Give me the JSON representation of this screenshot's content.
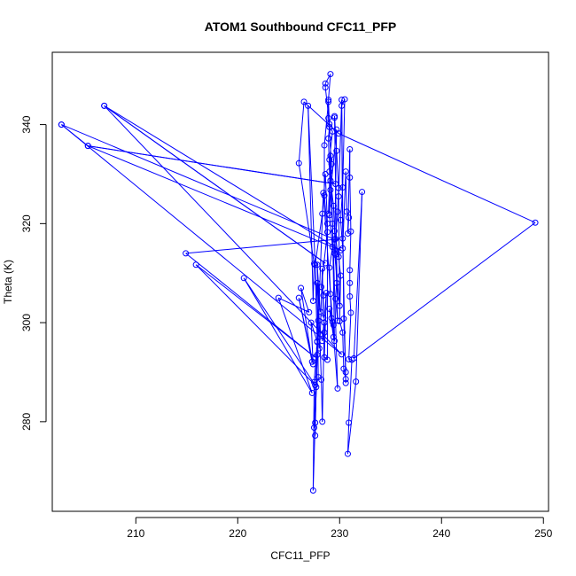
{
  "chart_data": {
    "type": "line",
    "title": "ATOM1 Southbound CFC11_PFP",
    "xlabel": "CFC11_PFP",
    "ylabel": "Theta (K)",
    "xlim": [
      201.8,
      250.5
    ],
    "ylim": [
      261.9,
      354.6
    ],
    "x_ticks": [
      210,
      220,
      230,
      240,
      250
    ],
    "y_ticks": [
      280,
      300,
      320,
      340
    ],
    "grid": false,
    "markers": "open-circle",
    "colors": {
      "series": "#0000ff",
      "axis": "#000000"
    },
    "series": [
      {
        "points": [
          [
            202.7,
            340.0
          ],
          [
            205.3,
            335.7
          ],
          [
            229.6,
            328.0
          ],
          [
            205.3,
            335.7
          ],
          [
            230.1,
            314.6
          ],
          [
            206.9,
            343.8
          ],
          [
            228.6,
            312.0
          ],
          [
            206.9,
            343.8
          ],
          [
            230.2,
            293.6
          ],
          [
            202.7,
            340.0
          ],
          [
            229.5,
            316.8
          ],
          [
            214.9,
            314.0
          ],
          [
            227.6,
            293.0
          ],
          [
            215.9,
            311.7
          ],
          [
            227.6,
            287.4
          ],
          [
            220.6,
            309.0
          ],
          [
            227.3,
            285.8
          ],
          [
            224.0,
            305.0
          ],
          [
            227.0,
            302.1
          ],
          [
            226.2,
            307.0
          ],
          [
            227.3,
            292.1
          ],
          [
            226.0,
            305.0
          ],
          [
            227.4,
            291.6
          ],
          [
            227.2,
            300.0
          ],
          [
            227.8,
            296.2
          ],
          [
            227.5,
            288.0
          ],
          [
            227.4,
            266.1
          ],
          [
            227.8,
            293.5
          ],
          [
            227.6,
            279.8
          ],
          [
            227.6,
            277.2
          ],
          [
            227.7,
            287.0
          ],
          [
            227.9,
            289.0
          ],
          [
            227.8,
            308.0
          ],
          [
            228.1,
            302.2
          ],
          [
            227.8,
            311.7
          ],
          [
            228.2,
            288.5
          ],
          [
            228.3,
            280.0
          ],
          [
            228.5,
            300.0
          ],
          [
            228.5,
            298.0
          ],
          [
            228.3,
            296.3
          ],
          [
            228.7,
            306.0
          ],
          [
            228.5,
            293.0
          ],
          [
            228.8,
            292.5
          ],
          [
            228.8,
            320.0
          ],
          [
            228.6,
            330.0
          ],
          [
            228.3,
            322.0
          ],
          [
            227.6,
            311.7
          ],
          [
            227.9,
            300.4
          ],
          [
            228.0,
            294.8
          ],
          [
            228.1,
            297.7
          ],
          [
            228.3,
            310.9
          ],
          [
            228.4,
            301.0
          ],
          [
            228.4,
            305.5
          ],
          [
            228.2,
            307.2
          ],
          [
            228.8,
            318.3
          ],
          [
            228.5,
            325.7
          ],
          [
            228.5,
            335.8
          ],
          [
            228.9,
            344.6
          ],
          [
            229.0,
            340.1
          ],
          [
            228.6,
            347.5
          ],
          [
            228.6,
            348.3
          ],
          [
            229.1,
            350.2
          ],
          [
            228.9,
            345.0
          ],
          [
            228.9,
            341.3
          ],
          [
            229.2,
            332.0
          ],
          [
            229.1,
            326.8
          ],
          [
            229.0,
            321.7
          ],
          [
            229.3,
            315.3
          ],
          [
            229.0,
            311.1
          ],
          [
            229.1,
            305.8
          ],
          [
            229.2,
            300.9
          ],
          [
            229.4,
            297.1
          ],
          [
            229.0,
            302.8
          ],
          [
            229.4,
            299.5
          ],
          [
            229.5,
            296.3
          ],
          [
            229.3,
            320.0
          ],
          [
            229.0,
            330.5
          ],
          [
            228.9,
            337.2
          ],
          [
            229.0,
            339.5
          ],
          [
            229.3,
            338.6
          ],
          [
            229.0,
            332.9
          ],
          [
            229.1,
            328.7
          ],
          [
            229.4,
            323.6
          ],
          [
            229.5,
            318.5
          ],
          [
            229.6,
            313.7
          ],
          [
            229.7,
            308.0
          ],
          [
            229.6,
            304.8
          ],
          [
            229.8,
            300.4
          ],
          [
            229.5,
            341.4
          ],
          [
            229.5,
            341.7
          ],
          [
            229.7,
            334.7
          ],
          [
            229.9,
            327.2
          ],
          [
            229.8,
            322.4
          ],
          [
            229.6,
            316.9
          ],
          [
            229.9,
            313.3
          ],
          [
            230.1,
            309.5
          ],
          [
            230.0,
            300.3
          ],
          [
            230.3,
            298.0
          ],
          [
            230.4,
            290.7
          ],
          [
            230.6,
            288.6
          ],
          [
            230.6,
            287.8
          ],
          [
            230.3,
            317.0
          ],
          [
            230.2,
            343.8
          ],
          [
            230.5,
            345.1
          ],
          [
            230.3,
            327.3
          ],
          [
            230.1,
            320.7
          ],
          [
            230.3,
            315.0
          ],
          [
            230.6,
            330.5
          ],
          [
            230.7,
            322.4
          ],
          [
            230.9,
            321.2
          ],
          [
            230.8,
            318.0
          ],
          [
            231.0,
            335.0
          ],
          [
            231.0,
            329.3
          ],
          [
            231.1,
            318.4
          ],
          [
            231.0,
            310.6
          ],
          [
            231.0,
            308.0
          ],
          [
            231.0,
            305.3
          ],
          [
            231.1,
            302.0
          ],
          [
            230.9,
            292.6
          ],
          [
            231.2,
            292.5
          ],
          [
            230.9,
            279.8
          ],
          [
            230.8,
            273.5
          ],
          [
            231.6,
            288.1
          ],
          [
            232.2,
            326.4
          ],
          [
            231.4,
            292.8
          ],
          [
            249.2,
            320.2
          ],
          [
            229.9,
            338.2
          ],
          [
            226.5,
            344.6
          ],
          [
            226.0,
            332.2
          ],
          [
            227.5,
            311.9
          ],
          [
            227.4,
            304.4
          ],
          [
            226.9,
            343.8
          ],
          [
            227.6,
            311.7
          ],
          [
            227.8,
            296.1
          ],
          [
            227.5,
            278.8
          ],
          [
            228.4,
            326.2
          ],
          [
            229.3,
            300.2
          ],
          [
            229.8,
            286.7
          ],
          [
            229.1,
            333.7
          ],
          [
            228.9,
            322.0
          ],
          [
            229.7,
            339.0
          ],
          [
            229.5,
            314.0
          ],
          [
            230.0,
            303.4
          ],
          [
            229.9,
            325.5
          ],
          [
            230.2,
            345.0
          ],
          [
            230.4,
            300.8
          ],
          [
            230.6,
            290.0
          ]
        ]
      }
    ]
  }
}
